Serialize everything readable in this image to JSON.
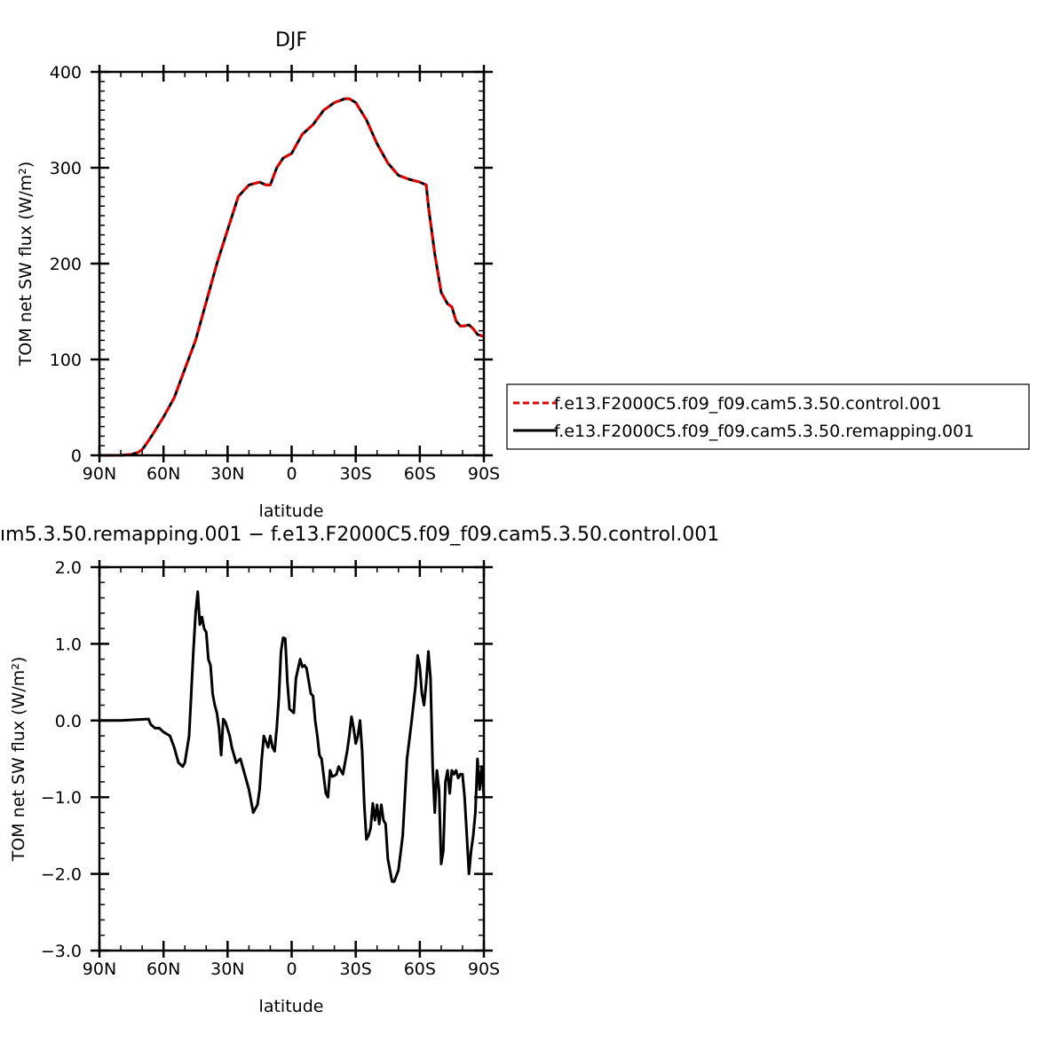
{
  "chart_data": [
    {
      "type": "line",
      "title": "DJF",
      "xlabel": "latitude",
      "ylabel": "TOM net SW flux (W/m²)",
      "x_ticks": [
        90,
        60,
        30,
        0,
        -30,
        -60,
        -90
      ],
      "x_tick_labels": [
        "90N",
        "60N",
        "30N",
        "0",
        "30S",
        "60S",
        "90S"
      ],
      "y_ticks": [
        0,
        100,
        200,
        300,
        400
      ],
      "y_tick_labels": [
        "0",
        "100",
        "200",
        "300",
        "400"
      ],
      "xlim": [
        90,
        -90
      ],
      "ylim": [
        0,
        400
      ],
      "legend": "right",
      "series": [
        {
          "name": "f.e13.F2000C5.f09_f09.cam5.3.50.control.001",
          "color": "#e00000",
          "dash": "dashed",
          "x": [
            90,
            85,
            80,
            75,
            72,
            70,
            68,
            65,
            60,
            55,
            50,
            45,
            40,
            35,
            30,
            25,
            20,
            15,
            12,
            10,
            7,
            4,
            0,
            -5,
            -10,
            -15,
            -20,
            -25,
            -27,
            -30,
            -35,
            -40,
            -45,
            -50,
            -55,
            -60,
            -63,
            -64,
            -67,
            -70,
            -73,
            -75,
            -77,
            -79,
            -81,
            -83,
            -85,
            -87,
            -90
          ],
          "y": [
            0,
            0,
            0,
            1,
            3,
            6,
            12,
            22,
            40,
            60,
            90,
            120,
            160,
            200,
            235,
            270,
            282,
            285,
            282,
            282,
            300,
            310,
            315,
            335,
            345,
            360,
            368,
            372,
            372,
            368,
            350,
            325,
            305,
            292,
            288,
            285,
            282,
            260,
            210,
            170,
            158,
            155,
            140,
            135,
            135,
            136,
            132,
            126,
            124
          ]
        },
        {
          "name": "f.e13.F2000C5.f09_f09.cam5.3.50.remapping.001",
          "color": "#000000",
          "dash": "solid",
          "x": [
            90,
            85,
            80,
            75,
            72,
            70,
            68,
            65,
            60,
            55,
            50,
            45,
            40,
            35,
            30,
            25,
            20,
            15,
            12,
            10,
            7,
            4,
            0,
            -5,
            -10,
            -15,
            -20,
            -25,
            -27,
            -30,
            -35,
            -40,
            -45,
            -50,
            -55,
            -60,
            -63,
            -64,
            -67,
            -70,
            -73,
            -75,
            -77,
            -79,
            -81,
            -83,
            -85,
            -87,
            -90
          ],
          "y": [
            0,
            0,
            0,
            1,
            3,
            6,
            12,
            22,
            40,
            60,
            90,
            120,
            160,
            200,
            235,
            270,
            282,
            285,
            282,
            282,
            300,
            310,
            315,
            335,
            345,
            360,
            368,
            372,
            372,
            368,
            350,
            325,
            305,
            292,
            288,
            285,
            282,
            260,
            210,
            170,
            158,
            155,
            140,
            135,
            135,
            136,
            132,
            126,
            124
          ]
        }
      ]
    },
    {
      "type": "line",
      "title": "ım5.3.50.remapping.001 − f.e13.F2000C5.f09_f09.cam5.3.50.control.001",
      "xlabel": "latitude",
      "ylabel": "TOM net SW flux (W/m²)",
      "x_ticks": [
        90,
        60,
        30,
        0,
        -30,
        -60,
        -90
      ],
      "x_tick_labels": [
        "90N",
        "60N",
        "30N",
        "0",
        "30S",
        "60S",
        "90S"
      ],
      "y_ticks": [
        2,
        1,
        0,
        -1,
        -2,
        -3
      ],
      "y_tick_labels": [
        "2.0",
        "1.0",
        "0.0",
        "−1.0",
        "−2.0",
        "−3.0"
      ],
      "xlim": [
        90,
        -90
      ],
      "ylim": [
        -3,
        2
      ],
      "series": [
        {
          "color": "#000000",
          "dash": "solid",
          "x": [
            90,
            80,
            73,
            67,
            66,
            64,
            62,
            60,
            57,
            55,
            53,
            51,
            50,
            48,
            46,
            45,
            44,
            43,
            42,
            41,
            40,
            39,
            38,
            37,
            36,
            35,
            34,
            33,
            32,
            31,
            29,
            28,
            26,
            24,
            22,
            20,
            18,
            16,
            15,
            14,
            13,
            11,
            10,
            9,
            8,
            7,
            6,
            5,
            4,
            3,
            2,
            1,
            -1,
            -2,
            -4,
            -5,
            -6,
            -7,
            -9,
            -10,
            -11,
            -12,
            -13,
            -14,
            -16,
            -17,
            -18,
            -19,
            -20,
            -21,
            -22,
            -24,
            -26,
            -27,
            -28,
            -29,
            -30,
            -31,
            -32,
            -33,
            -34,
            -35,
            -36,
            -37,
            -38,
            -39,
            -40,
            -41,
            -42,
            -43,
            -44,
            -45,
            -46,
            -47,
            -48,
            -50,
            -52,
            -54,
            -56,
            -58,
            -59,
            -60,
            -61,
            -62,
            -63,
            -64,
            -65,
            -66,
            -67,
            -68,
            -69,
            -70,
            -71,
            -72,
            -73,
            -74,
            -75,
            -76,
            -77,
            -78,
            -79,
            -80,
            -81,
            -82,
            -83,
            -84,
            -85,
            -86,
            -87,
            -88,
            -89,
            -90
          ],
          "y": [
            0,
            0,
            0.01,
            0.02,
            -0.05,
            -0.1,
            -0.1,
            -0.15,
            -0.2,
            -0.35,
            -0.55,
            -0.6,
            -0.55,
            -0.2,
            0.9,
            1.4,
            1.68,
            1.25,
            1.35,
            1.2,
            1.15,
            0.8,
            0.72,
            0.35,
            0.2,
            0.1,
            -0.1,
            -0.45,
            0.02,
            -0.02,
            -0.2,
            -0.35,
            -0.55,
            -0.5,
            -0.7,
            -0.9,
            -1.2,
            -1.1,
            -0.9,
            -0.5,
            -0.2,
            -0.35,
            -0.2,
            -0.35,
            -0.4,
            -0.1,
            0.3,
            0.9,
            1.08,
            1.07,
            0.5,
            0.15,
            0.1,
            0.55,
            0.8,
            0.7,
            0.72,
            0.68,
            0.35,
            0.32,
            0.0,
            -0.2,
            -0.45,
            -0.5,
            -0.95,
            -1.0,
            -0.65,
            -0.73,
            -0.72,
            -0.7,
            -0.6,
            -0.7,
            -0.4,
            -0.2,
            0.05,
            -0.1,
            -0.3,
            -0.2,
            0.0,
            -0.4,
            -1.1,
            -1.55,
            -1.5,
            -1.4,
            -1.08,
            -1.3,
            -1.1,
            -1.35,
            -1.1,
            -1.3,
            -1.35,
            -1.8,
            -1.95,
            -2.1,
            -2.1,
            -1.95,
            -1.5,
            -0.5,
            -0.05,
            0.45,
            0.85,
            0.7,
            0.35,
            0.2,
            0.5,
            0.9,
            0.55,
            -0.6,
            -1.2,
            -0.65,
            -0.9,
            -1.87,
            -1.7,
            -0.8,
            -0.65,
            -0.95,
            -0.65,
            -0.7,
            -0.65,
            -0.75,
            -0.7,
            -0.7,
            -1.0,
            -1.5,
            -2.0,
            -1.7,
            -1.5,
            -1.2,
            -0.5,
            -0.9,
            -0.6,
            -1.0
          ]
        }
      ]
    }
  ]
}
